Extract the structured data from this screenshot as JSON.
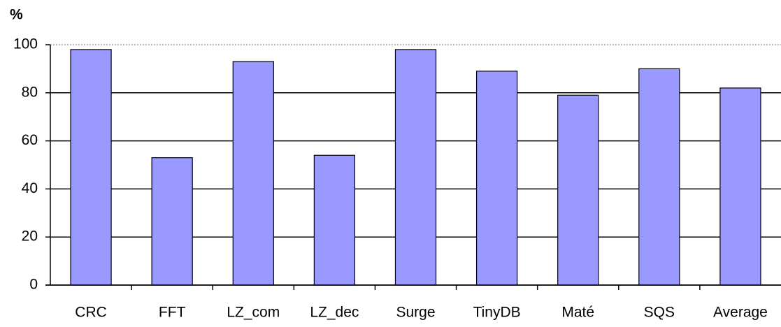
{
  "chart_data": {
    "type": "bar",
    "y_label": "%",
    "categories": [
      "CRC",
      "FFT",
      "LZ_com",
      "LZ_dec",
      "Surge",
      "TinyDB",
      "Maté",
      "SQS",
      "Average"
    ],
    "values": [
      98,
      53,
      93,
      54,
      98,
      89,
      79,
      90,
      82
    ],
    "color": "#9999ff",
    "ylim": [
      0,
      100
    ],
    "yticks": [
      0,
      20,
      40,
      60,
      80,
      100
    ],
    "grid": true
  }
}
